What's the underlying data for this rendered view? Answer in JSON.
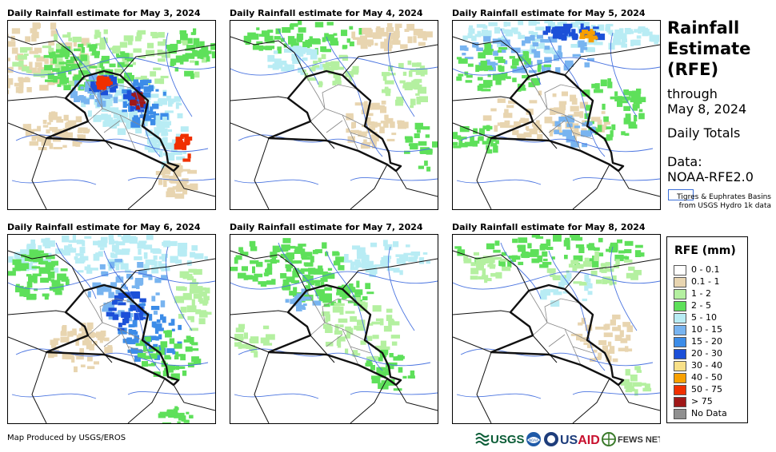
{
  "panels": [
    {
      "title": "Daily Rainfall estimate for May 3, 2024",
      "intensity": "heavy"
    },
    {
      "title": "Daily Rainfall estimate for May 4, 2024",
      "intensity": "light"
    },
    {
      "title": "Daily Rainfall estimate for May 5, 2024",
      "intensity": "north"
    },
    {
      "title": "Daily Rainfall estimate for May 6, 2024",
      "intensity": "moderate"
    },
    {
      "title": "Daily Rainfall estimate for May 7, 2024",
      "intensity": "light-moderate"
    },
    {
      "title": "Daily Rainfall estimate for May 8, 2024",
      "intensity": "very-light"
    }
  ],
  "sidebar": {
    "title_line1": "Rainfall",
    "title_line2": "Estimate",
    "title_line3": "(RFE)",
    "through": "through",
    "through_date": "May 8, 2024",
    "daily_totals": "Daily Totals",
    "data_label": "Data:",
    "data_source": "NOAA-RFE2.0",
    "basin_note": "Tigres & Euphrates Basins from USGS Hydro 1k data"
  },
  "legend": {
    "title": "RFE (mm)",
    "items": [
      {
        "label": "0 - 0.1",
        "color": "#ffffff"
      },
      {
        "label": "0.1 - 1",
        "color": "#e8d5b0"
      },
      {
        "label": "1 - 2",
        "color": "#b4f0a0"
      },
      {
        "label": "2 - 5",
        "color": "#5ee05a"
      },
      {
        "label": "5 - 10",
        "color": "#b8ecf4"
      },
      {
        "label": "10 - 15",
        "color": "#78b4f0"
      },
      {
        "label": "15 - 20",
        "color": "#3c8ce8"
      },
      {
        "label": "20 - 30",
        "color": "#1c50d8"
      },
      {
        "label": "30 - 40",
        "color": "#f8e088"
      },
      {
        "label": "40 - 50",
        "color": "#f8a000"
      },
      {
        "label": "50 - 75",
        "color": "#f03000"
      },
      {
        "label": "> 75",
        "color": "#a01818"
      },
      {
        "label": "No Data",
        "color": "#909090"
      }
    ]
  },
  "footer": {
    "credit": "Map Produced by USGS/EROS",
    "logos": [
      "USGS",
      "NOAA",
      "USAID",
      "FEWS NET"
    ]
  }
}
